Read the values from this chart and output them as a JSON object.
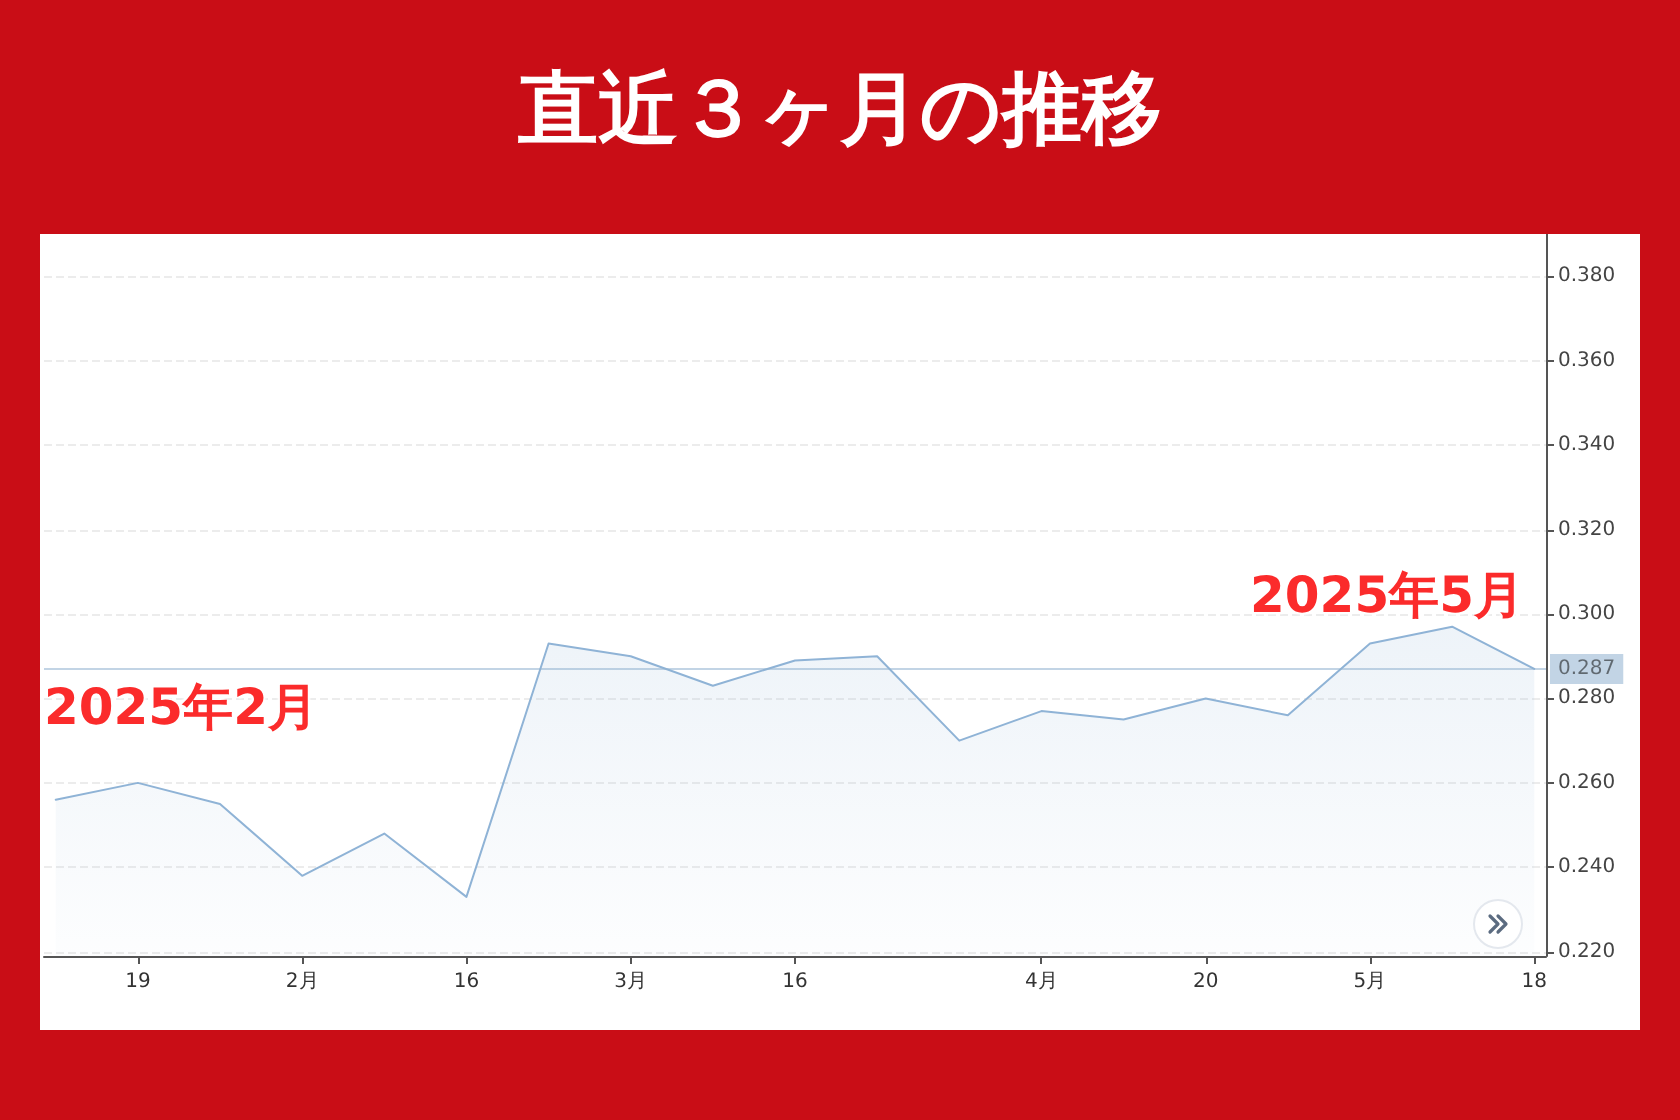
{
  "chart_data": {
    "type": "area",
    "title": "直近３ヶ月の推移",
    "x": [
      "2025-01-12",
      "2025-01-19",
      "2025-01-26",
      "2025-02-02",
      "2025-02-09",
      "2025-02-16",
      "2025-02-23",
      "2025-03-02",
      "2025-03-09",
      "2025-03-16",
      "2025-03-23",
      "2025-03-30",
      "2025-04-06",
      "2025-04-13",
      "2025-04-20",
      "2025-04-27",
      "2025-05-04",
      "2025-05-11",
      "2025-05-18"
    ],
    "values": [
      0.256,
      0.26,
      0.255,
      0.238,
      0.248,
      0.233,
      0.293,
      0.29,
      0.283,
      0.289,
      0.29,
      0.27,
      0.277,
      0.275,
      0.28,
      0.276,
      0.293,
      0.297,
      0.287
    ],
    "color": "#8fb3d6",
    "xlim": [
      "2025-01-11",
      "2025-05-19"
    ],
    "xticks": [
      {
        "value": "2025-01-19",
        "label": "19"
      },
      {
        "value": "2025-02-02",
        "label": "2月"
      },
      {
        "value": "2025-02-16",
        "label": "16"
      },
      {
        "value": "2025-03-02",
        "label": "3月"
      },
      {
        "value": "2025-03-16",
        "label": "16"
      },
      {
        "value": "2025-04-06",
        "label": "4月"
      },
      {
        "value": "2025-04-20",
        "label": "20"
      },
      {
        "value": "2025-05-04",
        "label": "5月"
      },
      {
        "value": "2025-05-18",
        "label": "18"
      }
    ],
    "ylim": [
      0.219,
      0.39
    ],
    "yticks": [
      {
        "value": 0.22,
        "label": "0.220"
      },
      {
        "value": 0.24,
        "label": "0.240"
      },
      {
        "value": 0.26,
        "label": "0.260"
      },
      {
        "value": 0.28,
        "label": "0.280"
      },
      {
        "value": 0.3,
        "label": "0.300"
      },
      {
        "value": 0.32,
        "label": "0.320"
      },
      {
        "value": 0.34,
        "label": "0.340"
      },
      {
        "value": 0.36,
        "label": "0.360"
      },
      {
        "value": 0.38,
        "label": "0.380"
      }
    ],
    "grid": "y",
    "ref_lines": [
      {
        "axis": "y",
        "value": 0.287,
        "label": "0.287",
        "color": "#8fb0cf"
      }
    ],
    "annotations": [
      "2025年2月",
      "2025年5月"
    ]
  }
}
